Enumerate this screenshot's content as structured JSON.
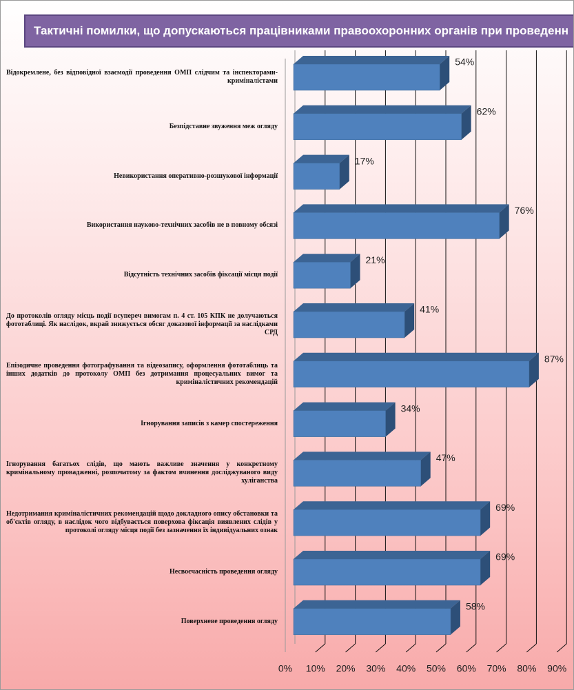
{
  "chart_data": {
    "type": "bar",
    "orientation": "horizontal",
    "title": "Тактичні помилки, що допускаються працівниками правоохоронних органів при проведенн",
    "categories": [
      "Відокремлене, без відповідної взаємодії проведення ОМП слідчим та інспекторами-криміналістами",
      "Безпідставне звуження меж огляду",
      "Невикористання оперативно-розшукової інформації",
      "Використання науково-технічних засобів не в повному обсязі",
      "Відсутність технічних засобів фіксації місця події",
      "До протоколів огляду місць події всупереч вимогам п. 4 ст. 105 КПК не долучаються фототаблиці. Як наслідок, вкрай знижується обсяг доказової інформації за наслідками СРД",
      "Епізодичне проведення фотографування та відеозапису, оформлення фототаблиць та інших додатків до протоколу ОМП без дотримання процесуальних вимог та криміналістичних рекомендацій",
      "Ігнорування записів з камер спостереження",
      "Ігнорування багатьох слідів, що мають важливе значення у конкретному кримінальному провадженні, розпочатому за фактом вчинення досліджуваного виду хуліганства",
      "Недотримання криміналістичних рекомендацій щодо докладного опису обстановки та об'єктів огляду, в наслідок чого відбувається поверхова фіксація виявлених слідів у протоколі огляду місця події без зазначення їх індивідуальних ознак",
      "Несвоєчасність проведення огляду",
      "Поверхневе проведення огляду"
    ],
    "values": [
      54,
      62,
      17,
      76,
      21,
      41,
      87,
      34,
      47,
      69,
      69,
      58
    ],
    "value_labels": [
      "54%",
      "62%",
      "17%",
      "76%",
      "21%",
      "41%",
      "87%",
      "34%",
      "47%",
      "69%",
      "69%",
      "58%"
    ],
    "color": "#4f81bd",
    "xlim": [
      0,
      90
    ],
    "xticks": [
      {
        "value": 0,
        "label": "0%"
      },
      {
        "value": 10,
        "label": "10%"
      },
      {
        "value": 20,
        "label": "20%"
      },
      {
        "value": 30,
        "label": "30%"
      },
      {
        "value": 40,
        "label": "40%"
      },
      {
        "value": 50,
        "label": "50%"
      },
      {
        "value": 60,
        "label": "60%"
      },
      {
        "value": 70,
        "label": "70%"
      },
      {
        "value": 80,
        "label": "80%"
      },
      {
        "value": 90,
        "label": "90%"
      }
    ],
    "grid": true
  }
}
